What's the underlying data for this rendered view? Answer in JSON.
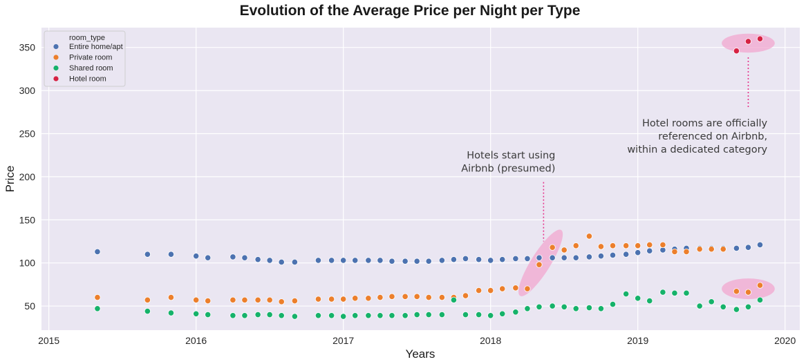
{
  "chart_data": {
    "type": "scatter",
    "title": "Evolution of the Average Price per Night per Type",
    "xlabel": "Years",
    "ylabel": "Price",
    "xlim": [
      2014.95,
      2020.1
    ],
    "ylim": [
      22,
      373
    ],
    "x_ticks": [
      2015,
      2016,
      2017,
      2018,
      2019,
      2020
    ],
    "y_ticks": [
      50,
      100,
      150,
      200,
      250,
      300,
      350
    ],
    "legend": {
      "title": "room_type",
      "position": "top-left"
    },
    "series": [
      {
        "name": "Entire home/apt",
        "color": "#4c72b0",
        "points": [
          [
            2015.33,
            113
          ],
          [
            2015.67,
            110
          ],
          [
            2015.83,
            110
          ],
          [
            2016.0,
            108
          ],
          [
            2016.08,
            106
          ],
          [
            2016.25,
            107
          ],
          [
            2016.33,
            106
          ],
          [
            2016.42,
            104
          ],
          [
            2016.5,
            103
          ],
          [
            2016.58,
            101
          ],
          [
            2016.67,
            101
          ],
          [
            2016.83,
            103
          ],
          [
            2016.92,
            103
          ],
          [
            2017.0,
            103
          ],
          [
            2017.08,
            103
          ],
          [
            2017.17,
            103
          ],
          [
            2017.25,
            103
          ],
          [
            2017.33,
            102
          ],
          [
            2017.42,
            102
          ],
          [
            2017.5,
            102
          ],
          [
            2017.58,
            102
          ],
          [
            2017.67,
            103
          ],
          [
            2017.75,
            104
          ],
          [
            2017.83,
            105
          ],
          [
            2017.92,
            104
          ],
          [
            2018.0,
            103
          ],
          [
            2018.08,
            104
          ],
          [
            2018.17,
            105
          ],
          [
            2018.25,
            105
          ],
          [
            2018.33,
            106
          ],
          [
            2018.42,
            106
          ],
          [
            2018.5,
            106
          ],
          [
            2018.58,
            106
          ],
          [
            2018.67,
            107
          ],
          [
            2018.75,
            108
          ],
          [
            2018.83,
            109
          ],
          [
            2018.92,
            110
          ],
          [
            2019.0,
            112
          ],
          [
            2019.08,
            114
          ],
          [
            2019.17,
            115
          ],
          [
            2019.25,
            116
          ],
          [
            2019.33,
            117
          ],
          [
            2019.42,
            117
          ],
          [
            2019.5,
            117
          ],
          [
            2019.58,
            117
          ],
          [
            2019.67,
            117
          ],
          [
            2019.75,
            118
          ],
          [
            2019.83,
            121
          ]
        ]
      },
      {
        "name": "Private room",
        "color": "#ec7f2c",
        "points": [
          [
            2015.33,
            60
          ],
          [
            2015.67,
            57
          ],
          [
            2015.83,
            60
          ],
          [
            2016.0,
            57
          ],
          [
            2016.08,
            56
          ],
          [
            2016.25,
            57
          ],
          [
            2016.33,
            57
          ],
          [
            2016.42,
            57
          ],
          [
            2016.5,
            57
          ],
          [
            2016.58,
            55
          ],
          [
            2016.67,
            56
          ],
          [
            2016.83,
            58
          ],
          [
            2016.92,
            58
          ],
          [
            2017.0,
            58
          ],
          [
            2017.08,
            59
          ],
          [
            2017.17,
            59
          ],
          [
            2017.25,
            60
          ],
          [
            2017.33,
            61
          ],
          [
            2017.42,
            61
          ],
          [
            2017.5,
            61
          ],
          [
            2017.58,
            60
          ],
          [
            2017.67,
            60
          ],
          [
            2017.75,
            60
          ],
          [
            2017.83,
            62
          ],
          [
            2017.92,
            68
          ],
          [
            2018.0,
            68
          ],
          [
            2018.08,
            70
          ],
          [
            2018.17,
            71
          ],
          [
            2018.25,
            70
          ],
          [
            2018.33,
            98
          ],
          [
            2018.42,
            118
          ],
          [
            2018.5,
            115
          ],
          [
            2018.58,
            120
          ],
          [
            2018.67,
            131
          ],
          [
            2018.75,
            119
          ],
          [
            2018.83,
            120
          ],
          [
            2018.92,
            120
          ],
          [
            2019.0,
            120
          ],
          [
            2019.08,
            121
          ],
          [
            2019.17,
            121
          ],
          [
            2019.25,
            113
          ],
          [
            2019.33,
            113
          ],
          [
            2019.42,
            116
          ],
          [
            2019.5,
            116
          ],
          [
            2019.58,
            116
          ],
          [
            2019.67,
            67
          ],
          [
            2019.75,
            66
          ],
          [
            2019.83,
            74
          ]
        ]
      },
      {
        "name": "Shared room",
        "color": "#16b26a",
        "points": [
          [
            2015.33,
            47
          ],
          [
            2015.67,
            44
          ],
          [
            2015.83,
            42
          ],
          [
            2016.0,
            41
          ],
          [
            2016.08,
            40
          ],
          [
            2016.25,
            39
          ],
          [
            2016.33,
            39
          ],
          [
            2016.42,
            40
          ],
          [
            2016.5,
            40
          ],
          [
            2016.58,
            39
          ],
          [
            2016.67,
            38
          ],
          [
            2016.83,
            39
          ],
          [
            2016.92,
            39
          ],
          [
            2017.0,
            38
          ],
          [
            2017.08,
            39
          ],
          [
            2017.17,
            39
          ],
          [
            2017.25,
            39
          ],
          [
            2017.33,
            39
          ],
          [
            2017.42,
            39
          ],
          [
            2017.5,
            40
          ],
          [
            2017.58,
            40
          ],
          [
            2017.67,
            40
          ],
          [
            2017.75,
            57
          ],
          [
            2017.83,
            40
          ],
          [
            2017.92,
            40
          ],
          [
            2018.0,
            39
          ],
          [
            2018.08,
            41
          ],
          [
            2018.17,
            43
          ],
          [
            2018.25,
            47
          ],
          [
            2018.33,
            49
          ],
          [
            2018.42,
            50
          ],
          [
            2018.5,
            49
          ],
          [
            2018.58,
            47
          ],
          [
            2018.67,
            48
          ],
          [
            2018.75,
            47
          ],
          [
            2018.83,
            52
          ],
          [
            2018.92,
            64
          ],
          [
            2019.0,
            59
          ],
          [
            2019.08,
            56
          ],
          [
            2019.17,
            66
          ],
          [
            2019.25,
            65
          ],
          [
            2019.33,
            65
          ],
          [
            2019.42,
            50
          ],
          [
            2019.5,
            55
          ],
          [
            2019.58,
            49
          ],
          [
            2019.67,
            46
          ],
          [
            2019.75,
            49
          ],
          [
            2019.83,
            57
          ]
        ]
      },
      {
        "name": "Hotel room",
        "color": "#d62243",
        "points": [
          [
            2019.67,
            346
          ],
          [
            2019.75,
            357
          ],
          [
            2019.83,
            360
          ]
        ]
      }
    ],
    "annotations": [
      {
        "lines": [
          "Hotels start using",
          "Airbnb (presumed)"
        ],
        "x": 2018.44,
        "y": 205,
        "arrow_to": [
          2018.36,
          125
        ]
      },
      {
        "lines": [
          "Hotel rooms are officially",
          "referenced on Airbnb,",
          "within a dedicated category"
        ],
        "x": 2019.88,
        "y": 244,
        "arrow_to": [
          2019.75,
          340
        ]
      }
    ],
    "highlights": [
      {
        "cx": 2018.34,
        "cy": 100,
        "rx": 0.08,
        "ry": 45
      },
      {
        "cx": 2019.75,
        "cy": 355,
        "rx": 0.18,
        "ry": 11
      },
      {
        "cx": 2019.75,
        "cy": 70,
        "rx": 0.18,
        "ry": 12
      }
    ]
  }
}
